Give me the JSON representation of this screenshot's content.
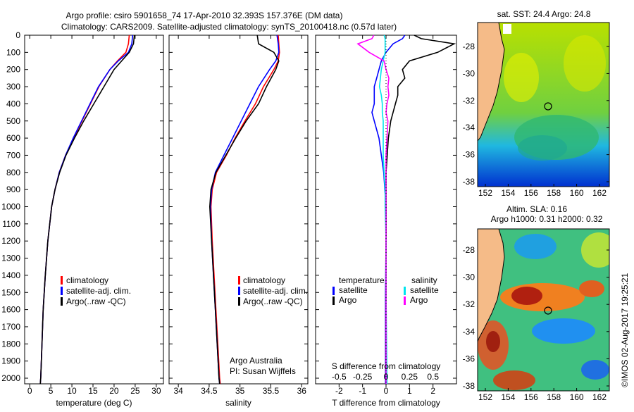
{
  "title_line1": "Argo profile: csiro 5901658_74 17-Apr-2010 32.393S 157.376E (DM data)",
  "title_line2": "Climatology: CARS2009. Satellite-adjusted climatology: synTS_20100418.nc (0.57d later)",
  "credit": "©IMOS 02-Aug-2017 19:25:21",
  "colors": {
    "clim": "#ff0000",
    "sat": "#0000ff",
    "argo": "#000000",
    "sal_sat": "#00e5ee",
    "sal_argo": "#ff00ff"
  },
  "chart_data": [
    {
      "type": "line",
      "title": "",
      "xlabel": "temperature (deg C)",
      "ylabel": "",
      "xlim": [
        -1.2,
        31.7
      ],
      "ylim": [
        2065,
        0
      ],
      "xticks": [
        "0",
        "5",
        "10",
        "15",
        "20",
        "25",
        "30"
      ],
      "yticks": [
        "0",
        "100",
        "200",
        "300",
        "400",
        "500",
        "600",
        "700",
        "800",
        "900",
        "1000",
        "1100",
        "1200",
        "1300",
        "1400",
        "1500",
        "1600",
        "1700",
        "1800",
        "1900",
        "2000"
      ],
      "depth": [
        0,
        50,
        100,
        150,
        200,
        300,
        400,
        500,
        600,
        700,
        800,
        900,
        1000,
        1200,
        1400,
        1600,
        1800,
        2000,
        2060
      ],
      "series": [
        {
          "name": "climatology",
          "values": [
            23.6,
            23.4,
            22.8,
            20.8,
            19.0,
            16.4,
            14.4,
            12.4,
            10.4,
            8.5,
            7.0,
            6.0,
            5.2,
            4.3,
            3.7,
            3.2,
            2.9,
            2.6,
            2.5
          ]
        },
        {
          "name": "satellite-adj. clim.",
          "values": [
            24.4,
            24.2,
            23.4,
            21.0,
            19.0,
            16.3,
            14.3,
            12.3,
            10.3,
            8.5,
            7.0,
            6.0,
            5.2,
            4.3,
            3.7,
            3.2,
            2.9,
            2.6,
            2.5
          ]
        },
        {
          "name": "Argo(..raw -QC)",
          "values": [
            24.8,
            24.6,
            23.6,
            21.8,
            20.0,
            17.6,
            15.2,
            12.8,
            10.6,
            8.6,
            7.1,
            6.0,
            5.2,
            4.3,
            3.7,
            3.2,
            2.9,
            2.6,
            2.5
          ]
        }
      ],
      "legend": [
        "climatology",
        "satellite-adj. clim.",
        "Argo(..raw -QC)"
      ],
      "legend_placement": "bottom-right"
    },
    {
      "type": "line",
      "xlabel": "salinity",
      "xlim": [
        33.85,
        36.1
      ],
      "ylim": [
        2065,
        0
      ],
      "xticks": [
        "34",
        "34.5",
        "35",
        "35.5",
        "36"
      ],
      "depth": [
        0,
        50,
        100,
        150,
        200,
        300,
        400,
        500,
        600,
        700,
        800,
        900,
        1000,
        1200,
        1400,
        1600,
        1800,
        2000,
        2060
      ],
      "series": [
        {
          "name": "climatology",
          "values": [
            35.62,
            35.63,
            35.64,
            35.62,
            35.55,
            35.38,
            35.25,
            35.08,
            34.92,
            34.78,
            34.62,
            34.55,
            34.53,
            34.55,
            34.58,
            34.61,
            34.64,
            34.67,
            34.68
          ]
        },
        {
          "name": "satellite-adj. clim.",
          "values": [
            35.6,
            35.62,
            35.63,
            35.58,
            35.48,
            35.3,
            35.16,
            35.02,
            34.88,
            34.74,
            34.6,
            34.54,
            34.52,
            34.54,
            34.57,
            34.6,
            34.63,
            34.66,
            34.67
          ]
        },
        {
          "name": "Argo(..raw -QC)",
          "values": [
            35.28,
            35.3,
            35.55,
            35.63,
            35.58,
            35.43,
            35.3,
            35.1,
            34.93,
            34.77,
            34.61,
            34.53,
            34.51,
            34.54,
            34.57,
            34.6,
            34.63,
            34.66,
            34.67
          ]
        }
      ],
      "legend": [
        "climatology",
        "satellite-adj. clim.",
        "Argo(..raw -QC)"
      ],
      "annotation_line1": "Argo Australia",
      "annotation_line2": "PI: Susan Wijffels"
    },
    {
      "type": "line",
      "xlabel": "T difference from climatology",
      "x2label": "S difference from climatology",
      "xlim": [
        -3,
        3
      ],
      "ylim": [
        2065,
        0
      ],
      "xticks": [
        "-2",
        "-1",
        "0",
        "1",
        "2"
      ],
      "x2ticks": [
        "-0.5",
        "-0.25",
        "0",
        "0.25",
        "0.5"
      ],
      "depth": [
        0,
        20,
        50,
        100,
        150,
        200,
        250,
        300,
        350,
        400,
        450,
        500,
        600,
        700,
        800,
        900,
        1000,
        1200,
        1500,
        2000,
        2060
      ],
      "series": [
        {
          "name": "temperature satellite",
          "values": [
            0.8,
            0.7,
            0.3,
            0.0,
            -0.2,
            -0.3,
            -0.4,
            -0.5,
            -0.5,
            -0.5,
            -0.6,
            -0.5,
            -0.3,
            -0.2,
            -0.1,
            -0.05,
            0,
            0,
            -0.02,
            -0.02,
            -0.02
          ]
        },
        {
          "name": "temperature Argo",
          "values": [
            1.2,
            1.5,
            2.9,
            2.2,
            1.0,
            0.7,
            0.8,
            0.5,
            0.5,
            0.4,
            0.3,
            0.2,
            0.1,
            0.05,
            0.0,
            0.0,
            0.0,
            0.0,
            0.0,
            0.0,
            0.0
          ]
        },
        {
          "name": "salinity satellite",
          "values": [
            -0.02,
            -0.01,
            -0.01,
            -0.01,
            -0.03,
            -0.05,
            -0.06,
            -0.07,
            -0.05,
            -0.04,
            -0.04,
            -0.03,
            -0.03,
            -0.03,
            -0.02,
            -0.01,
            -0.01,
            0.0,
            0.0,
            0.01,
            0.01
          ]
        },
        {
          "name": "salinity Argo",
          "values": [
            -0.13,
            -0.15,
            -0.3,
            -0.18,
            -0.02,
            0.0,
            0.03,
            0.02,
            0.03,
            0.01,
            0.0,
            0.02,
            0.01,
            0.0,
            0.0,
            0.0,
            0.0,
            0.0,
            0.0,
            0.0,
            0.0
          ]
        }
      ],
      "legend_temp_header": "temperature",
      "legend_sal_header": "salinity",
      "legend_temp": [
        "satellite",
        "Argo"
      ],
      "legend_sal": [
        "satellite",
        "Argo"
      ]
    },
    {
      "type": "heatmap",
      "title": "sat. SST: 24.4 Argo: 24.8",
      "xticks": [
        "152",
        "154",
        "156",
        "158",
        "160",
        "162"
      ],
      "yticks": [
        "-28",
        "-30",
        "-32",
        "-34",
        "-36",
        "-38"
      ],
      "profile_location": [
        157.376,
        -32.393
      ]
    },
    {
      "type": "heatmap",
      "title_line1": "Altim. SLA: 0.16",
      "title_line2": "Argo h1000: 0.31 h2000: 0.32",
      "xticks": [
        "152",
        "154",
        "156",
        "158",
        "160",
        "162"
      ],
      "yticks": [
        "-28",
        "-30",
        "-32",
        "-34",
        "-36",
        "-38"
      ],
      "profile_location": [
        157.376,
        -32.393
      ]
    }
  ]
}
